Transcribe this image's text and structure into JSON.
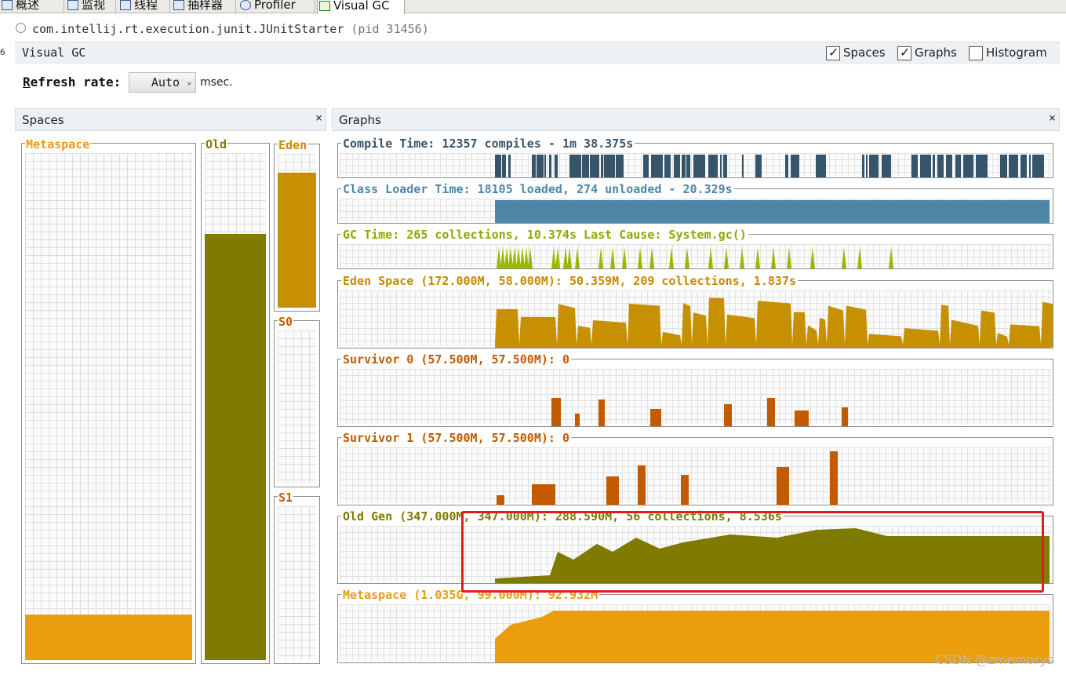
{
  "tabs": [
    {
      "label": "概述",
      "icon": "overview-icon"
    },
    {
      "label": "监视",
      "icon": "monitor-icon"
    },
    {
      "label": "线程",
      "icon": "threads-icon"
    },
    {
      "label": "抽样器",
      "icon": "sampler-icon"
    },
    {
      "label": "Profiler",
      "icon": "profiler-icon"
    },
    {
      "label": "Visual GC",
      "icon": "visualgc-icon",
      "active": true
    }
  ],
  "process": {
    "main_class": "com.intellij.rt.execution.junit.JUnitStarter",
    "pid": "(pid 31456)"
  },
  "left_edge_text": "6",
  "toolbar": {
    "title": "Visual GC",
    "checkboxes": [
      {
        "label": "Spaces",
        "checked": true
      },
      {
        "label": "Graphs",
        "checked": true
      },
      {
        "label": "Histogram",
        "checked": false
      }
    ]
  },
  "refresh": {
    "label_prefix": "R",
    "label_rest": "efresh rate:",
    "value": "Auto",
    "unit": "msec."
  },
  "spaces_panel": {
    "title": "Spaces",
    "close": "×",
    "spaces": [
      {
        "name": "Metaspace",
        "fill": 0.09,
        "color": "#eb9e0c",
        "label_color": "#ee9a10"
      },
      {
        "name": "Old",
        "fill": 0.84,
        "color": "#7e7b00",
        "label_color": "#7e7b00"
      },
      {
        "name": "Eden",
        "fill": 0.88,
        "color": "#c79000",
        "label_color": "#c68a00"
      },
      {
        "name": "S0",
        "fill": 0,
        "color": "#c25a00",
        "label_color": "#c25a00"
      },
      {
        "name": "S1",
        "fill": 0,
        "color": "#c25a00",
        "label_color": "#c25a00"
      }
    ]
  },
  "graphs_panel": {
    "title": "Graphs",
    "close": "×",
    "graphs": [
      {
        "label": "Compile Time: 12357 compiles - 1m 38.375s",
        "color": "#36546a",
        "label_color": "#36546a"
      },
      {
        "label": "Class Loader Time: 18105 loaded, 274 unloaded - 20.329s",
        "color": "#4f86a8",
        "label_color": "#4f86a8"
      },
      {
        "label": "GC Time: 265 collections, 10.374s  Last Cause: System.gc()",
        "color": "#99b800",
        "label_color": "#8fa800"
      },
      {
        "label": "Eden Space (172.000M, 58.000M): 50.359M, 209 collections, 1.837s",
        "color": "#c79000",
        "label_color": "#c68a00"
      },
      {
        "label": "Survivor 0 (57.500M, 57.500M): 0",
        "color": "#c25a00",
        "label_color": "#c25a00"
      },
      {
        "label": "Survivor 1 (57.500M, 57.500M): 0",
        "color": "#c25a00",
        "label_color": "#c25a00"
      },
      {
        "label": "Old Gen (347.000M, 347.000M): 288.590M, 56 collections, 8.536s",
        "color": "#7e7b00",
        "label_color": "#7e7b00"
      },
      {
        "label": "Metaspace (1.035G, 99.000M): 92.932M",
        "color": "#eb9e0c",
        "label_color": "#ee9a10"
      }
    ]
  },
  "watermark": "CSDN @zmemorys"
}
